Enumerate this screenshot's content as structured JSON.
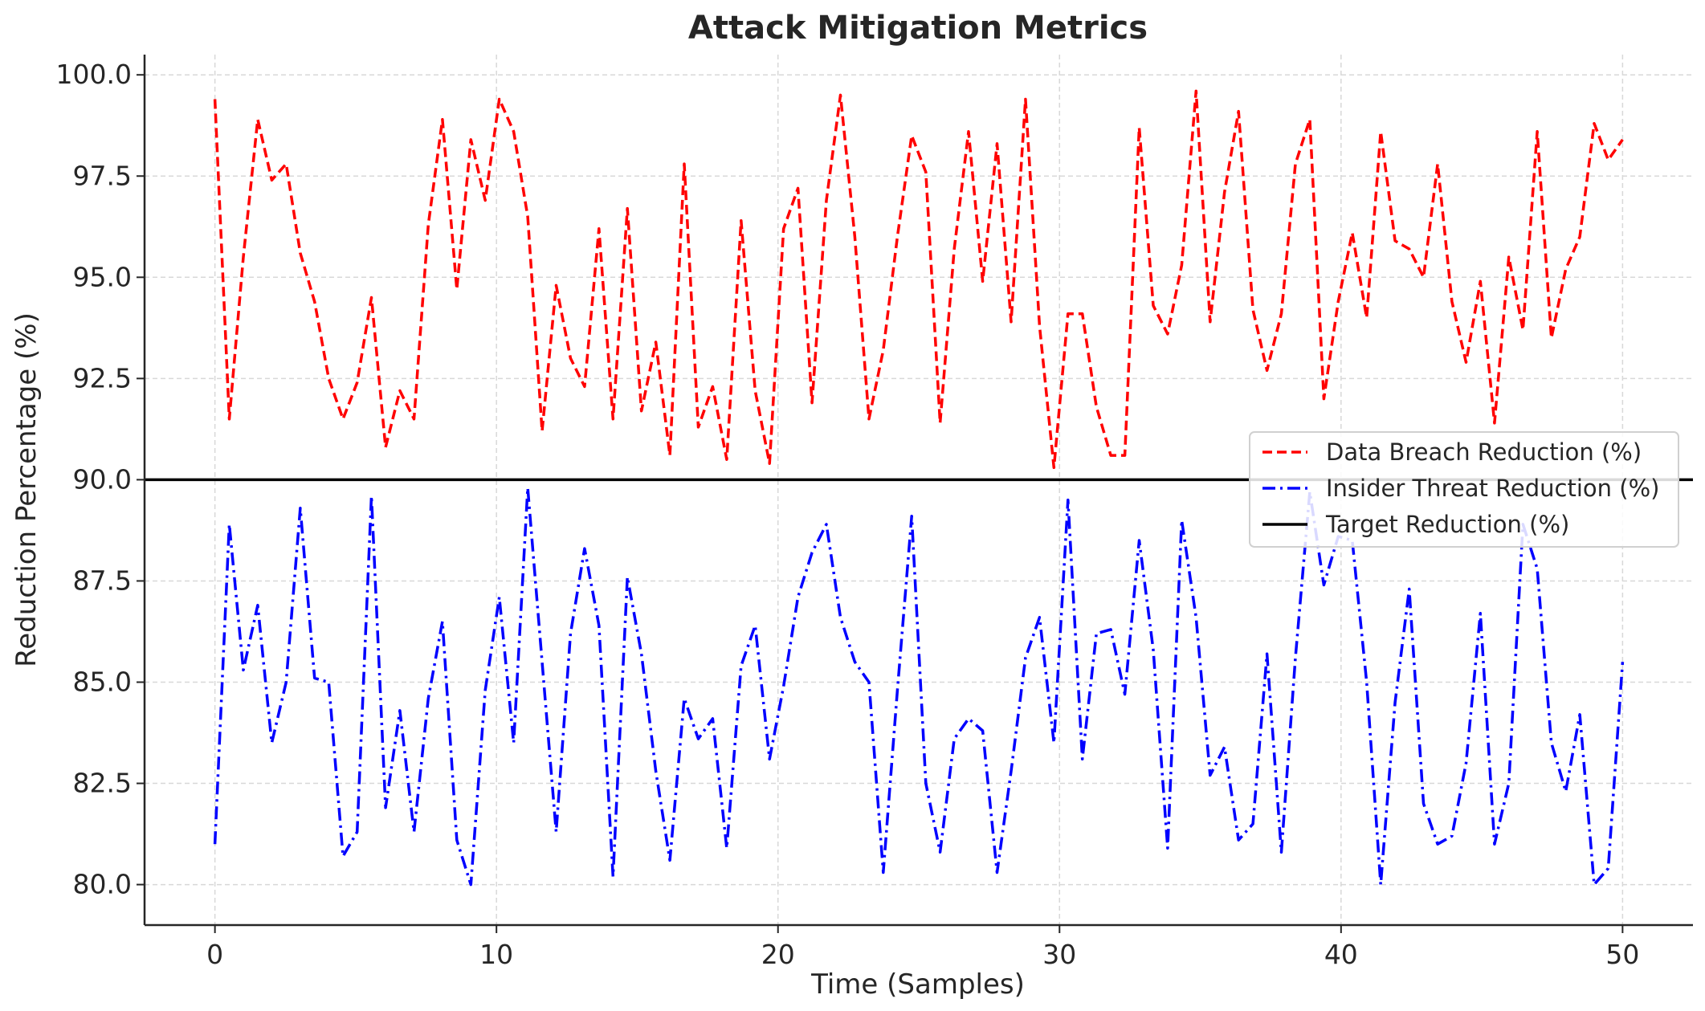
{
  "chart_data": {
    "type": "line",
    "title": "Attack Mitigation Metrics",
    "xlabel": "Time (Samples)",
    "ylabel": "Reduction Percentage (%)",
    "xlim": [
      -2.5,
      52.5
    ],
    "ylim": [
      79.0,
      100.5
    ],
    "xticks": [
      0,
      10,
      20,
      30,
      40,
      50
    ],
    "yticks": [
      80.0,
      82.5,
      85.0,
      87.5,
      90.0,
      92.5,
      95.0,
      97.5,
      100.0
    ],
    "grid": true,
    "legend_position": "center-right",
    "x": [
      0.0,
      0.51,
      1.01,
      1.52,
      2.02,
      2.53,
      3.03,
      3.54,
      4.04,
      4.55,
      5.05,
      5.56,
      6.06,
      6.57,
      7.07,
      7.58,
      8.08,
      8.59,
      9.09,
      9.6,
      10.1,
      10.61,
      11.11,
      11.62,
      12.12,
      12.63,
      13.13,
      13.64,
      14.14,
      14.65,
      15.15,
      15.66,
      16.16,
      16.67,
      17.17,
      17.68,
      18.18,
      18.69,
      19.19,
      19.7,
      20.2,
      20.71,
      21.21,
      21.72,
      22.22,
      22.73,
      23.23,
      23.74,
      24.24,
      24.75,
      25.25,
      25.76,
      26.26,
      26.77,
      27.27,
      27.78,
      28.28,
      28.79,
      29.29,
      29.8,
      30.3,
      30.81,
      31.31,
      31.82,
      32.32,
      32.83,
      33.33,
      33.84,
      34.34,
      34.85,
      35.35,
      35.86,
      36.36,
      36.87,
      37.37,
      37.88,
      38.38,
      38.89,
      39.39,
      39.9,
      40.4,
      40.91,
      41.41,
      41.92,
      42.42,
      42.93,
      43.43,
      43.94,
      44.44,
      44.95,
      45.45,
      45.96,
      46.46,
      46.97,
      47.47,
      47.98,
      48.48,
      48.99,
      49.49,
      50.0
    ],
    "series": [
      {
        "name": "Data Breach Reduction (%)",
        "color": "#ff0000",
        "style": "dashed",
        "values": [
          99.4,
          91.5,
          95.5,
          98.9,
          97.4,
          97.8,
          95.6,
          94.4,
          92.5,
          91.5,
          92.4,
          94.5,
          90.8,
          92.2,
          91.5,
          96.3,
          98.9,
          94.7,
          98.4,
          96.9,
          99.4,
          98.6,
          96.5,
          91.2,
          94.8,
          93.0,
          92.3,
          96.2,
          91.5,
          96.7,
          91.7,
          93.4,
          90.6,
          97.8,
          91.3,
          92.3,
          90.5,
          96.4,
          92.2,
          90.4,
          96.2,
          97.2,
          91.9,
          96.9,
          99.5,
          96.0,
          91.5,
          93.2,
          96.0,
          98.5,
          97.6,
          91.4,
          95.7,
          98.6,
          94.9,
          98.3,
          93.9,
          99.4,
          93.8,
          90.3,
          94.1,
          94.1,
          91.8,
          90.6,
          90.6,
          98.7,
          94.3,
          93.6,
          95.3,
          99.6,
          93.9,
          97.1,
          99.1,
          94.2,
          92.7,
          94.1,
          97.8,
          98.9,
          92.0,
          94.4,
          96.1,
          94.0,
          98.6,
          95.9,
          95.7,
          95.0,
          97.8,
          94.4,
          92.9,
          94.9,
          91.4,
          95.5,
          93.7,
          98.6,
          93.5,
          95.2,
          96.0,
          98.8,
          97.9,
          98.4
        ]
      },
      {
        "name": "Insider Threat Reduction (%)",
        "color": "#0000ff",
        "style": "dashdot",
        "values": [
          81.0,
          88.9,
          85.3,
          86.9,
          83.5,
          85.0,
          89.3,
          85.1,
          85.0,
          80.7,
          81.3,
          89.6,
          81.9,
          84.3,
          81.3,
          84.6,
          86.5,
          81.1,
          80.0,
          84.8,
          87.1,
          83.5,
          89.8,
          85.5,
          81.3,
          86.2,
          88.3,
          86.4,
          80.2,
          87.6,
          85.7,
          82.8,
          80.6,
          84.6,
          83.6,
          84.1,
          80.9,
          85.4,
          86.4,
          83.1,
          84.9,
          87.1,
          88.2,
          88.9,
          86.6,
          85.5,
          85.0,
          80.3,
          84.8,
          89.1,
          82.5,
          80.8,
          83.6,
          84.1,
          83.8,
          80.3,
          82.8,
          85.6,
          86.6,
          83.5,
          89.5,
          83.1,
          86.2,
          86.3,
          84.7,
          88.5,
          85.8,
          80.9,
          89.0,
          86.6,
          82.7,
          83.4,
          81.1,
          81.5,
          85.7,
          80.8,
          85.6,
          89.7,
          87.4,
          88.6,
          88.5,
          85.0,
          80.0,
          84.5,
          87.3,
          82.0,
          81.0,
          81.2,
          83.0,
          86.7,
          81.0,
          82.5,
          88.9,
          87.8,
          83.5,
          82.3,
          84.2,
          80.0,
          80.4,
          85.5
        ]
      },
      {
        "name": "Target Reduction (%)",
        "color": "#000000",
        "style": "solid",
        "constant": 90.0
      }
    ]
  }
}
